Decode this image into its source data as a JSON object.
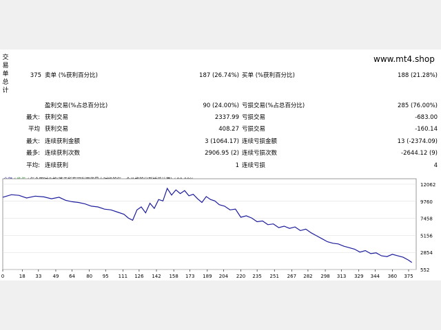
{
  "watermark": "www.mt4.shop",
  "vertical_label": "交易单总计",
  "total_trades": "375",
  "rows": [
    {
      "l1": "",
      "l2": "卖单 (%获利百分比)",
      "v1": "187 (26.74%)",
      "l3": "买单 (%获利百分比)",
      "v2": "188 (21.28%)"
    },
    {
      "l1": "",
      "l2": "盈利交易(%占总百分比)",
      "v1": "90 (24.00%)",
      "l3": "亏损交易(%占总百分比)",
      "v2": "285 (76.00%)"
    },
    {
      "l1": "最大:",
      "l2": "获利交易",
      "v1": "2337.99",
      "l3": "亏损交易",
      "v2": "-683.00"
    },
    {
      "l1": "平均",
      "l2": "获利交易",
      "v1": "408.27",
      "l3": "亏损交易",
      "v2": "-160.14"
    },
    {
      "l1": "最大:",
      "l2": "连续获利金额",
      "v1": "3 (1064.17)",
      "l3": "连续亏损金额",
      "v2": "13 (-2374.09)"
    },
    {
      "l1": "最多:",
      "l2": "连续获利次数",
      "v1": "2906.95 (2)",
      "l3": "连续亏损次数",
      "v2": "-2644.12 (9)"
    },
    {
      "l1": "平均:",
      "l2": "连续获利",
      "v1": "1",
      "l3": "连续亏损",
      "v2": "4"
    }
  ],
  "legend": {
    "part1": "余额",
    "sep1": " / ",
    "part2": "净值",
    "rest": " / 每个即时价格(基于所有可利用的最小时段的每一个价格的分形插值计算) / 90.00%"
  },
  "colors": {
    "line": "#1b1b9c",
    "grid": "#d8d8d8",
    "axis": "#000000"
  },
  "chart_data": {
    "type": "line",
    "x_ticks": [
      0,
      18,
      33,
      49,
      64,
      80,
      95,
      111,
      126,
      142,
      158,
      173,
      189,
      204,
      220,
      235,
      251,
      267,
      282,
      298,
      313,
      329,
      344,
      360,
      375
    ],
    "y_ticks": [
      552,
      2854,
      5156,
      7458,
      9760,
      12062
    ],
    "xlim": [
      0,
      382
    ],
    "ylim": [
      552,
      12800
    ],
    "series": [
      {
        "x": [
          0,
          8,
          15,
          22,
          30,
          38,
          45,
          52,
          58,
          64,
          70,
          76,
          82,
          88,
          94,
          100,
          106,
          112,
          116,
          120,
          124,
          128,
          132,
          136,
          140,
          144,
          148,
          152,
          156,
          160,
          164,
          168,
          172,
          176,
          180,
          184,
          188,
          192,
          196,
          200,
          205,
          210,
          215,
          220,
          225,
          230,
          235,
          240,
          245,
          250,
          255,
          260,
          265,
          270,
          275,
          280,
          285,
          290,
          295,
          300,
          305,
          310,
          315,
          320,
          325,
          330,
          335,
          340,
          345,
          350,
          355,
          360,
          365,
          370,
          375,
          378
        ],
        "y": [
          10300,
          10650,
          10550,
          10200,
          10450,
          10350,
          10100,
          10300,
          9900,
          9700,
          9600,
          9400,
          9100,
          9000,
          8700,
          8600,
          8300,
          8000,
          7500,
          7200,
          8600,
          9000,
          8200,
          9500,
          8800,
          10000,
          9800,
          11500,
          10600,
          11300,
          10800,
          11200,
          10500,
          10700,
          10100,
          9600,
          10400,
          10000,
          9800,
          9300,
          9100,
          8600,
          8700,
          7600,
          7800,
          7500,
          7000,
          7100,
          6600,
          6700,
          6200,
          6400,
          6100,
          6300,
          5800,
          6000,
          5500,
          5100,
          4700,
          4300,
          4100,
          4000,
          3700,
          3500,
          3300,
          2900,
          3100,
          2700,
          2800,
          2400,
          2300,
          2600,
          2400,
          2200,
          1800,
          1500
        ]
      }
    ]
  }
}
